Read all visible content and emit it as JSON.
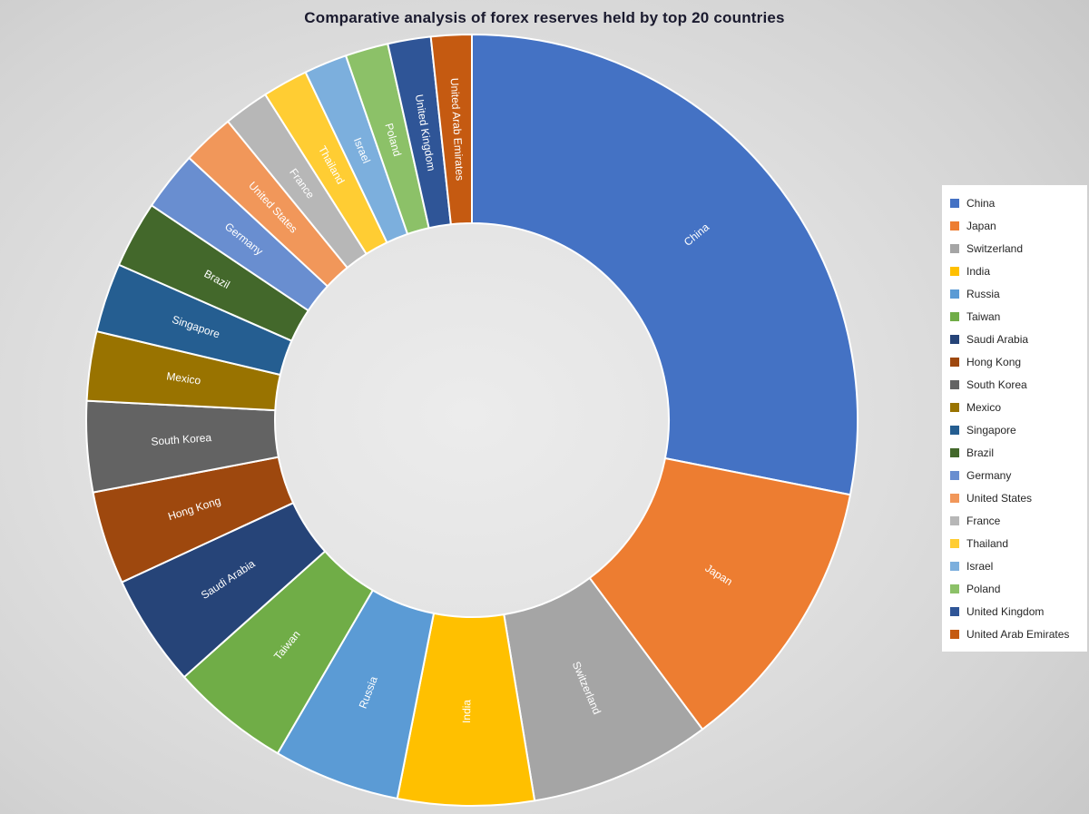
{
  "title": "Comparative analysis of forex reserves held by top 20 countries",
  "chart_data": {
    "type": "pie",
    "subtype": "donut",
    "title": "Comparative analysis of forex reserves held by top 20 countries",
    "legend_position": "right",
    "start_angle_deg": 0,
    "direction": "clockwise",
    "donut_hole_ratio": 0.51,
    "unit": "% of total (estimated from arc angles; chart shows no numeric data labels)",
    "categories": [
      "China",
      "Japan",
      "Switzerland",
      "India",
      "Russia",
      "Taiwan",
      "Saudi Arabia",
      "Hong Kong",
      "South Korea",
      "Mexico",
      "Singapore",
      "Brazil",
      "Germany",
      "United States",
      "France",
      "Thailand",
      "Israel",
      "Poland",
      "United Kingdom",
      "United Arab Emirates"
    ],
    "values": [
      28.1,
      11.7,
      7.6,
      5.7,
      5.3,
      5.0,
      4.7,
      3.9,
      3.8,
      2.9,
      2.9,
      2.8,
      2.5,
      2.2,
      1.9,
      1.9,
      1.8,
      1.8,
      1.8,
      1.7
    ],
    "colors": [
      "#4472C4",
      "#ED7D31",
      "#A5A5A5",
      "#FFC000",
      "#5B9BD5",
      "#70AD47",
      "#264478",
      "#9E480E",
      "#636363",
      "#997300",
      "#255E91",
      "#43682B",
      "#698ED0",
      "#F1975A",
      "#B7B7B7",
      "#FFCD33",
      "#7CAFDD",
      "#8CC168",
      "#2F5597",
      "#C55A11"
    ]
  }
}
